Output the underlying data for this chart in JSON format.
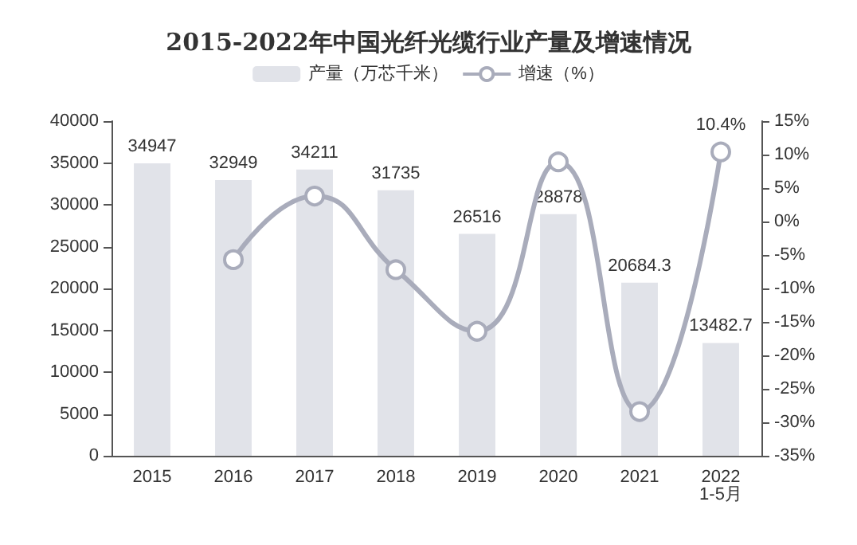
{
  "chart_data": {
    "type": "bar",
    "title": "2015-2022年中国光纤光缆行业产量及增速情况",
    "categories": [
      "2015",
      "2016",
      "2017",
      "2018",
      "2019",
      "2020",
      "2021",
      "2022\n1-5月"
    ],
    "series": [
      {
        "name": "产量（万芯千米）",
        "color": "#e1e3e9",
        "values": [
          34947,
          32949,
          34211,
          31735,
          26516,
          28878,
          20684.3,
          13482.7
        ],
        "value_labels": [
          "34947",
          "32949",
          "34211",
          "31735",
          "26516",
          "28878",
          "20684.3",
          "13482.7"
        ]
      },
      {
        "name": "增速（%）",
        "type": "line",
        "axis": "y2",
        "color": "#a9acbb",
        "marker": "circle",
        "values": [
          null,
          -5.7,
          3.8,
          -7.2,
          -16.4,
          8.9,
          -28.4,
          10.4
        ],
        "value_labels": [
          null,
          null,
          null,
          null,
          null,
          null,
          null,
          "10.4%"
        ]
      }
    ],
    "ylim": [
      0,
      40000
    ],
    "yticks": [
      0,
      5000,
      10000,
      15000,
      20000,
      25000,
      30000,
      35000,
      40000
    ],
    "y2lim": [
      -35,
      15
    ],
    "y2ticks": [
      {
        "value": -35,
        "label": "-35%"
      },
      {
        "value": -30,
        "label": "-30%"
      },
      {
        "value": -25,
        "label": "-25%"
      },
      {
        "value": -20,
        "label": "-20%"
      },
      {
        "value": -15,
        "label": "-15%"
      },
      {
        "value": -10,
        "label": "-10%"
      },
      {
        "value": -5,
        "label": "-5%"
      },
      {
        "value": 0,
        "label": "0%"
      },
      {
        "value": 5,
        "label": "5%"
      },
      {
        "value": 10,
        "label": "10%"
      },
      {
        "value": 15,
        "label": "15%"
      }
    ],
    "legend": "top",
    "grid": false
  }
}
